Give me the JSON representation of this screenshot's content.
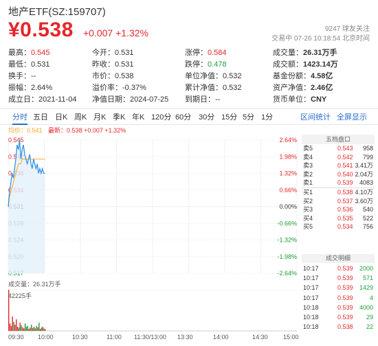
{
  "header": {
    "title": "地产ETF(SZ:159707)",
    "price": "¥0.538",
    "change": "+0.007",
    "change_pct": "+1.32%",
    "followers": "9247 球友关注",
    "status": "交易中 07-26 10:18:54 北京时间"
  },
  "stats": [
    [
      {
        "k": "最高：",
        "v": "0.545",
        "c": "red"
      },
      {
        "k": "今开：",
        "v": "0.531",
        "c": ""
      },
      {
        "k": "涨停：",
        "v": "0.584",
        "c": "red"
      },
      {
        "k": "成交量：",
        "v": "26.31万手",
        "c": "",
        "b": true
      }
    ],
    [
      {
        "k": "最低：",
        "v": "0.531",
        "c": ""
      },
      {
        "k": "昨收：",
        "v": "0.531",
        "c": ""
      },
      {
        "k": "跌停：",
        "v": "0.478",
        "c": "green"
      },
      {
        "k": "成交额：",
        "v": "1423.14万",
        "c": "",
        "b": true
      }
    ],
    [
      {
        "k": "换手：",
        "v": "--",
        "c": ""
      },
      {
        "k": "市价：",
        "v": "0.538",
        "c": ""
      },
      {
        "k": "单位净值：",
        "v": "0.532",
        "c": ""
      },
      {
        "k": "基金份额：",
        "v": "4.58亿",
        "c": "",
        "b": true
      }
    ],
    [
      {
        "k": "振幅：",
        "v": "2.64%",
        "c": ""
      },
      {
        "k": "溢价率：",
        "v": "-0.37%",
        "c": ""
      },
      {
        "k": "累计净值：",
        "v": "0.532",
        "c": ""
      },
      {
        "k": "资产净值：",
        "v": "2.46亿",
        "c": "",
        "b": true
      }
    ],
    [
      {
        "k": "成立日：",
        "v": "2021-11-04",
        "c": ""
      },
      {
        "k": "净值日期：",
        "v": "2024-07-25",
        "c": ""
      },
      {
        "k": "到期日：",
        "v": "--",
        "c": ""
      },
      {
        "k": "货币单位：",
        "v": "CNY",
        "c": "",
        "b": true
      }
    ]
  ],
  "tabs": [
    "分时",
    "五日",
    "日K",
    "周K",
    "月K",
    "季K",
    "年K",
    "120分",
    "60分",
    "30分",
    "15分",
    "5分",
    "1分"
  ],
  "tabs_right": [
    "区间统计",
    "全屏显示"
  ],
  "legend": {
    "avg": "均价：0.541",
    "latest": "最新：0.538 +0.007 +1.32%"
  },
  "chart_data": {
    "type": "line",
    "y_left_ticks": [
      "0.545",
      "0.542",
      "0.538",
      "0.534",
      "0.531",
      "0.528",
      "0.524",
      "0.520",
      "0.517"
    ],
    "y_right_ticks": [
      "2.64%",
      "1.98%",
      "1.32%",
      "0.66%",
      "0.00%",
      "-0.66%",
      "-1.32%",
      "-1.98%",
      "-2.64%"
    ],
    "ylim": [
      0.517,
      0.545
    ],
    "x_ticks": [
      "09:30",
      "10:00",
      "10:30",
      "11:00",
      "11:30/13:00",
      "13:30",
      "14:00",
      "14:30",
      "15:00"
    ],
    "series": [
      {
        "values": [
          0.531,
          0.534,
          0.536,
          0.538,
          0.537,
          0.539,
          0.541,
          0.544,
          0.543,
          0.545,
          0.541,
          0.543,
          0.544,
          0.542,
          0.541,
          0.54,
          0.541,
          0.542,
          0.54,
          0.539,
          0.541,
          0.54,
          0.539,
          0.54,
          0.538,
          0.539,
          0.538,
          0.539,
          0.538,
          0.538
        ]
      },
      {
        "values": [
          0.531,
          0.533,
          0.534,
          0.535,
          0.536,
          0.537,
          0.538,
          0.539,
          0.54,
          0.54,
          0.54,
          0.541,
          0.541,
          0.541,
          0.541,
          0.541,
          0.541,
          0.541,
          0.541,
          0.541,
          0.541,
          0.541,
          0.541,
          0.541,
          0.541,
          0.541,
          0.541,
          0.541,
          0.541,
          0.541
        ]
      }
    ],
    "volume_label": "成交量：26.31万手",
    "volume_max": "42225手",
    "volume": [
      1.0,
      0.18,
      0.12,
      0.35,
      0.22,
      0.15,
      0.28,
      0.1,
      0.08,
      0.2,
      0.14,
      0.09,
      0.06,
      0.18,
      0.1,
      0.12,
      0.05,
      0.08,
      0.15,
      0.07,
      0.1,
      0.06,
      0.12,
      0.09,
      0.2,
      0.05,
      0.08,
      0.1,
      0.06,
      0.04
    ]
  },
  "order_book": {
    "title": "五档盘口",
    "rows": [
      {
        "side": "卖5",
        "price": "0.543",
        "qty": "958"
      },
      {
        "side": "卖4",
        "price": "0.542",
        "qty": "799"
      },
      {
        "side": "卖3",
        "price": "0.541",
        "qty": "3.41万"
      },
      {
        "side": "卖2",
        "price": "0.540",
        "qty": "2.04万"
      },
      {
        "side": "卖1",
        "price": "0.539",
        "qty": "4083"
      },
      {
        "side": "买1",
        "price": "0.538",
        "qty": "4.10万"
      },
      {
        "side": "买2",
        "price": "0.537",
        "qty": "3.60万"
      },
      {
        "side": "买3",
        "price": "0.536",
        "qty": "540"
      },
      {
        "side": "买4",
        "price": "0.535",
        "qty": "522"
      },
      {
        "side": "买5",
        "price": "0.534",
        "qty": "756"
      }
    ]
  },
  "trades": {
    "title": "成交明细",
    "rows": [
      {
        "time": "10:17",
        "price": "0.539",
        "qty": "2000"
      },
      {
        "time": "10:17",
        "price": "0.539",
        "qty": "571"
      },
      {
        "time": "10:17",
        "price": "0.539",
        "qty": "1429"
      },
      {
        "time": "10:17",
        "price": "0.539",
        "qty": "4"
      },
      {
        "time": "10:18",
        "price": "0.539",
        "qty": "4000"
      },
      {
        "time": "10:18",
        "price": "0.539",
        "qty": "29"
      },
      {
        "time": "10:18",
        "price": "0.538",
        "qty": "22"
      }
    ]
  },
  "colors": {
    "up": "#e4262a",
    "down": "#1b9e3b",
    "accent": "#2a6ccb",
    "price_line": "#2a8de0",
    "avg_line": "#f5a623"
  }
}
